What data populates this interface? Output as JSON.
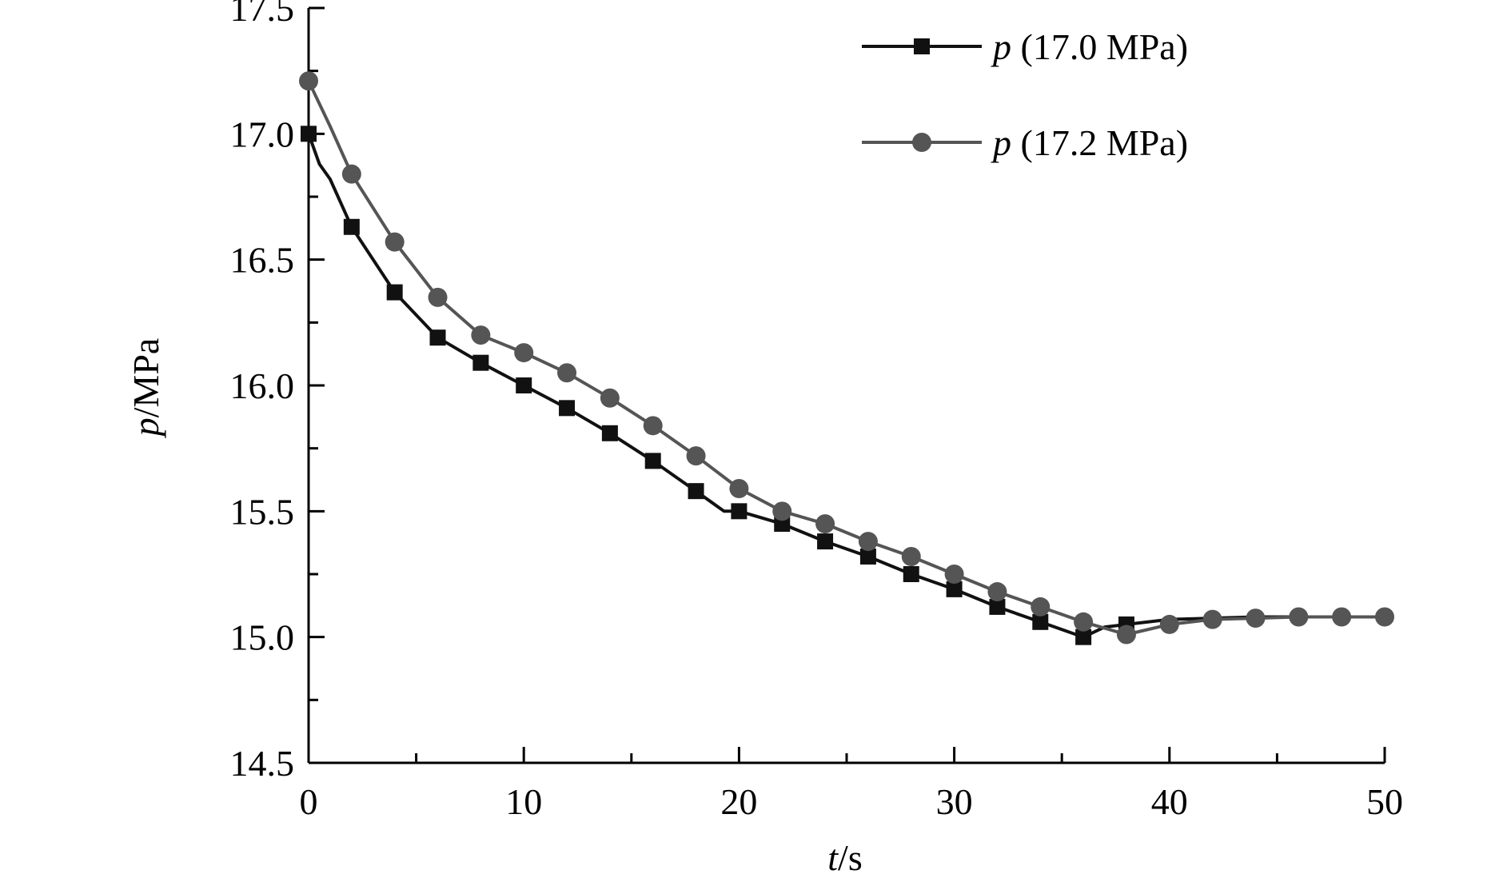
{
  "chart_data": {
    "type": "line",
    "title": "",
    "xlabel_var": "t",
    "xlabel_unit": "/s",
    "ylabel_var": "p",
    "ylabel_unit": "/MPa",
    "xlim": [
      0,
      50
    ],
    "ylim": [
      14.5,
      17.5
    ],
    "xticks": [
      0,
      10,
      20,
      30,
      40,
      50
    ],
    "xtick_labels": [
      "0",
      "10",
      "20",
      "30",
      "40",
      "50"
    ],
    "xminor": [
      5,
      15,
      25,
      35,
      45
    ],
    "yticks": [
      14.5,
      15.0,
      15.5,
      16.0,
      16.5,
      17.0,
      17.5
    ],
    "ytick_labels": [
      "14.5",
      "15.0",
      "15.5",
      "16.0",
      "16.5",
      "17.0",
      "17.5"
    ],
    "yminor": [
      14.75,
      15.25,
      15.75,
      16.25,
      16.75,
      17.25
    ],
    "grid": false,
    "legend_position": "top-right",
    "series": [
      {
        "name_var": "p",
        "name_rest": " (17.0 MPa)",
        "color": "#111111",
        "marker": "square",
        "line": [
          [
            0,
            17.0
          ],
          [
            0.5,
            16.88
          ],
          [
            1,
            16.82
          ],
          [
            2,
            16.63
          ],
          [
            4,
            16.37
          ],
          [
            6,
            16.19
          ],
          [
            8,
            16.09
          ],
          [
            10,
            16.0
          ],
          [
            12,
            15.91
          ],
          [
            14,
            15.81
          ],
          [
            16,
            15.7
          ],
          [
            18,
            15.58
          ],
          [
            19.3,
            15.5
          ],
          [
            20,
            15.5
          ],
          [
            22,
            15.45
          ],
          [
            24,
            15.38
          ],
          [
            26,
            15.32
          ],
          [
            28,
            15.25
          ],
          [
            30,
            15.19
          ],
          [
            32,
            15.12
          ],
          [
            34,
            15.06
          ],
          [
            36,
            15.0
          ],
          [
            37,
            15.04
          ],
          [
            38,
            15.05
          ],
          [
            40,
            15.07
          ],
          [
            42,
            15.075
          ],
          [
            44,
            15.08
          ],
          [
            46,
            15.08
          ],
          [
            48,
            15.08
          ],
          [
            50,
            15.08
          ]
        ],
        "x": [
          0,
          2,
          4,
          6,
          8,
          10,
          12,
          14,
          16,
          18,
          20,
          22,
          24,
          26,
          28,
          30,
          32,
          34,
          36,
          38
        ],
        "values": [
          17.0,
          16.63,
          16.37,
          16.19,
          16.09,
          16.0,
          15.91,
          15.81,
          15.7,
          15.58,
          15.5,
          15.45,
          15.38,
          15.32,
          15.25,
          15.19,
          15.12,
          15.06,
          15.0,
          15.05
        ]
      },
      {
        "name_var": "p",
        "name_rest": " (17.2 MPa)",
        "color": "#555555",
        "marker": "circle",
        "line": [
          [
            0,
            17.21
          ],
          [
            1,
            17.03
          ],
          [
            2,
            16.84
          ],
          [
            4,
            16.57
          ],
          [
            6,
            16.35
          ],
          [
            8,
            16.2
          ],
          [
            10,
            16.13
          ],
          [
            12,
            16.05
          ],
          [
            14,
            15.95
          ],
          [
            16,
            15.84
          ],
          [
            18,
            15.72
          ],
          [
            20,
            15.59
          ],
          [
            22,
            15.5
          ],
          [
            24,
            15.45
          ],
          [
            26,
            15.38
          ],
          [
            28,
            15.32
          ],
          [
            30,
            15.25
          ],
          [
            32,
            15.18
          ],
          [
            34,
            15.12
          ],
          [
            36,
            15.06
          ],
          [
            38,
            15.01
          ],
          [
            40,
            15.05
          ],
          [
            42,
            15.07
          ],
          [
            44,
            15.075
          ],
          [
            46,
            15.08
          ],
          [
            48,
            15.08
          ],
          [
            50,
            15.08
          ]
        ],
        "x": [
          0,
          2,
          4,
          6,
          8,
          10,
          12,
          14,
          16,
          18,
          20,
          22,
          24,
          26,
          28,
          30,
          32,
          34,
          36,
          38,
          40,
          42,
          44,
          46,
          48,
          50
        ],
        "values": [
          17.21,
          16.84,
          16.57,
          16.35,
          16.2,
          16.13,
          16.05,
          15.95,
          15.84,
          15.72,
          15.59,
          15.5,
          15.45,
          15.38,
          15.32,
          15.25,
          15.18,
          15.12,
          15.06,
          15.01,
          15.05,
          15.07,
          15.075,
          15.08,
          15.08,
          15.08
        ]
      }
    ]
  }
}
